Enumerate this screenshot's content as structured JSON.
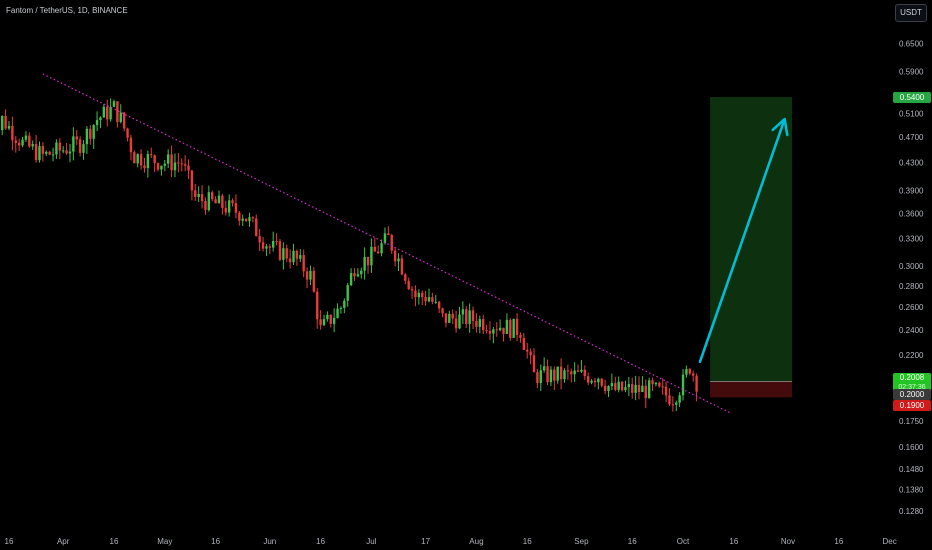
{
  "header": {
    "title": "Fantom / TetherUS, 1D, BINANCE"
  },
  "toolbar": {
    "currency_label": "USDT"
  },
  "price_tags": {
    "target": {
      "value": "0.5400",
      "color": "#26a641"
    },
    "current": {
      "value": "0.2008",
      "countdown": "02:37:36",
      "color": "#22c322"
    },
    "entry": {
      "value": "0.2000",
      "color": "#3a3a3a"
    },
    "stop": {
      "value": "0.1900",
      "color": "#d11a1a"
    }
  },
  "chart_data": {
    "type": "candlestick",
    "title": "Fantom / TetherUS, 1D, BINANCE",
    "y_scale": "log",
    "ylim": [
      0.12,
      0.68
    ],
    "y_ticks": [
      "0.6500",
      "0.5900",
      "0.5100",
      "0.4700",
      "0.4300",
      "0.3900",
      "0.3600",
      "0.3300",
      "0.3000",
      "0.2800",
      "0.2600",
      "0.2400",
      "0.2200",
      "0.1750",
      "0.1600",
      "0.1480",
      "0.1380",
      "0.1280"
    ],
    "x_ticks": [
      "16",
      "Apr",
      "16",
      "May",
      "16",
      "Jun",
      "16",
      "Jul",
      "17",
      "Aug",
      "16",
      "Sep",
      "16",
      "Oct",
      "16",
      "Nov",
      "16",
      "Dec"
    ],
    "series": [
      {
        "name": "",
        "type": "close_path",
        "points": [
          [
            "Mar 10",
            0.44
          ],
          [
            "Mar 14",
            0.5
          ],
          [
            "Mar 20",
            0.46
          ],
          [
            "Mar 26",
            0.44
          ],
          [
            "Apr 1",
            0.45
          ],
          [
            "Apr 6",
            0.46
          ],
          [
            "Apr 11",
            0.5
          ],
          [
            "Apr 16",
            0.52
          ],
          [
            "Apr 18",
            0.5
          ],
          [
            "Apr 22",
            0.44
          ],
          [
            "May 1",
            0.43
          ],
          [
            "May 6",
            0.43
          ],
          [
            "May 10",
            0.38
          ],
          [
            "May 18",
            0.37
          ],
          [
            "May 24",
            0.36
          ],
          [
            "Jun 1",
            0.32
          ],
          [
            "Jun 8",
            0.31
          ],
          [
            "Jun 13",
            0.29
          ],
          [
            "Jun 16",
            0.24
          ],
          [
            "Jun 22",
            0.26
          ],
          [
            "Jun 26",
            0.3
          ],
          [
            "Jul 1",
            0.31
          ],
          [
            "Jul 6",
            0.33
          ],
          [
            "Jul 10",
            0.3
          ],
          [
            "Jul 14",
            0.27
          ],
          [
            "Jul 18",
            0.27
          ],
          [
            "Jul 22",
            0.25
          ],
          [
            "Jul 30",
            0.25
          ],
          [
            "Aug 6",
            0.245
          ],
          [
            "Aug 14",
            0.24
          ],
          [
            "Aug 18",
            0.205
          ],
          [
            "Aug 24",
            0.205
          ],
          [
            "Aug 30",
            0.205
          ],
          [
            "Sep 6",
            0.205
          ],
          [
            "Sep 10",
            0.195
          ],
          [
            "Sep 16",
            0.195
          ],
          [
            "Sep 22",
            0.195
          ],
          [
            "Sep 28",
            0.19
          ],
          [
            "Oct 1",
            0.2
          ],
          [
            "Oct 3",
            0.212
          ],
          [
            "Oct 5",
            0.2008
          ]
        ]
      }
    ],
    "annotations": [
      {
        "type": "trendline",
        "style": "dotted",
        "color": "#d62ad0",
        "from": [
          "Mar 26",
          0.585
        ],
        "to": [
          "Oct 15",
          0.18
        ]
      },
      {
        "type": "long_position",
        "entry": 0.2008,
        "target": 0.54,
        "stop": 0.19
      },
      {
        "type": "arrow",
        "color": "#00bcd4",
        "from": [
          "Oct 6",
          0.215
        ],
        "to": [
          "Oct 31",
          0.5
        ]
      }
    ],
    "colors": {
      "up": "#26a69a",
      "down": "#ef5350",
      "up_candle": "#3cc34a",
      "down_candle": "#e83b3b"
    },
    "grid": false
  }
}
